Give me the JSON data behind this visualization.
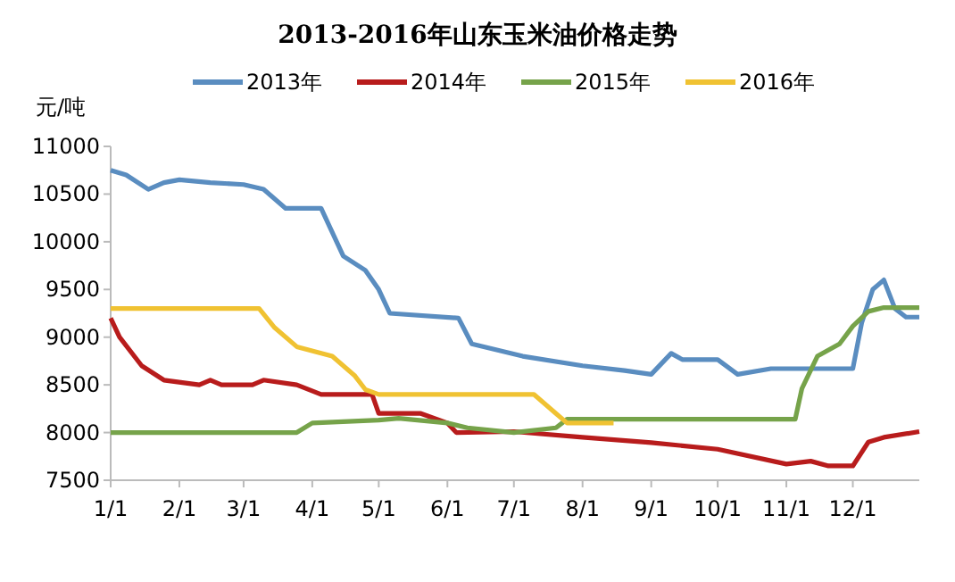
{
  "chart_data": {
    "type": "line",
    "title": "2013-2016年山东玉米油价格走势",
    "ylabel": "元/吨",
    "legend": "top",
    "grid": false,
    "marker": "none",
    "line_style": "solid",
    "xlim": [
      "--01-01",
      "--12-31"
    ],
    "xticks": [
      {
        "value": "--01-01",
        "label": "1/1"
      },
      {
        "value": "--02-01",
        "label": "2/1"
      },
      {
        "value": "--03-01",
        "label": "3/1"
      },
      {
        "value": "--04-01",
        "label": "4/1"
      },
      {
        "value": "--05-01",
        "label": "5/1"
      },
      {
        "value": "--06-01",
        "label": "6/1"
      },
      {
        "value": "--07-01",
        "label": "7/1"
      },
      {
        "value": "--08-01",
        "label": "8/1"
      },
      {
        "value": "--09-01",
        "label": "9/1"
      },
      {
        "value": "--10-01",
        "label": "10/1"
      },
      {
        "value": "--11-01",
        "label": "11/1"
      },
      {
        "value": "--12-01",
        "label": "12/1"
      }
    ],
    "ylim": [
      7500,
      11000
    ],
    "yticks": [
      7500,
      8000,
      8500,
      9000,
      9500,
      10000,
      10500,
      11000
    ],
    "series": [
      {
        "name": "2013年",
        "color": "#5a8dc0",
        "x": [
          "--01-01",
          "--01-08",
          "--01-18",
          "--01-25",
          "--02-01",
          "--02-15",
          "--03-01",
          "--03-10",
          "--03-20",
          "--04-05",
          "--04-15",
          "--04-25",
          "--05-01",
          "--05-06",
          "--06-06",
          "--06-12",
          "--07-05",
          "--08-01",
          "--08-20",
          "--09-01",
          "--09-10",
          "--09-15",
          "--10-01",
          "--10-10",
          "--10-25",
          "--11-20",
          "--12-01",
          "--12-05",
          "--12-10",
          "--12-15",
          "--12-20",
          "--12-25",
          "--12-31"
        ],
        "values": [
          10750,
          10700,
          10550,
          10620,
          10650,
          10620,
          10600,
          10550,
          10350,
          10350,
          9850,
          9700,
          9500,
          9250,
          9200,
          8930,
          8800,
          8700,
          8650,
          8610,
          8830,
          8765,
          8765,
          8610,
          8670,
          8670,
          8670,
          9150,
          9500,
          9600,
          9300,
          9210,
          9210
        ]
      },
      {
        "name": "2014年",
        "color": "#b81c1c",
        "x": [
          "--01-01",
          "--01-05",
          "--01-15",
          "--01-25",
          "--02-10",
          "--02-15",
          "--02-20",
          "--03-05",
          "--03-10",
          "--03-25",
          "--04-05",
          "--04-28",
          "--05-01",
          "--05-20",
          "--06-01",
          "--06-05",
          "--07-01",
          "--08-01",
          "--09-01",
          "--10-01",
          "--11-01",
          "--11-12",
          "--11-20",
          "--12-01",
          "--12-08",
          "--12-15",
          "--12-31"
        ],
        "values": [
          9200,
          9000,
          8700,
          8550,
          8500,
          8550,
          8500,
          8500,
          8550,
          8500,
          8400,
          8400,
          8200,
          8200,
          8100,
          8000,
          8010,
          7950,
          7895,
          7825,
          7670,
          7700,
          7650,
          7650,
          7900,
          7950,
          8010
        ]
      },
      {
        "name": "2015年",
        "color": "#76a34a",
        "x": [
          "--01-01",
          "--03-25",
          "--04-01",
          "--05-01",
          "--05-10",
          "--06-01",
          "--06-10",
          "--07-01",
          "--07-20",
          "--07-25",
          "--11-05",
          "--11-08",
          "--11-15",
          "--11-25",
          "--12-01",
          "--12-08",
          "--12-15",
          "--12-31"
        ],
        "values": [
          8000,
          8000,
          8100,
          8130,
          8150,
          8100,
          8050,
          8000,
          8050,
          8140,
          8140,
          8460,
          8800,
          8930,
          9115,
          9270,
          9310,
          9310
        ]
      },
      {
        "name": "2016年",
        "color": "#f0c232",
        "x": [
          "--01-01",
          "--03-08",
          "--03-15",
          "--03-25",
          "--04-10",
          "--04-20",
          "--04-25",
          "--05-01",
          "--07-10",
          "--07-15",
          "--07-20",
          "--07-25",
          "--08-15"
        ],
        "values": [
          9300,
          9300,
          9100,
          8900,
          8800,
          8600,
          8450,
          8400,
          8400,
          8300,
          8200,
          8100,
          8100
        ]
      }
    ]
  }
}
